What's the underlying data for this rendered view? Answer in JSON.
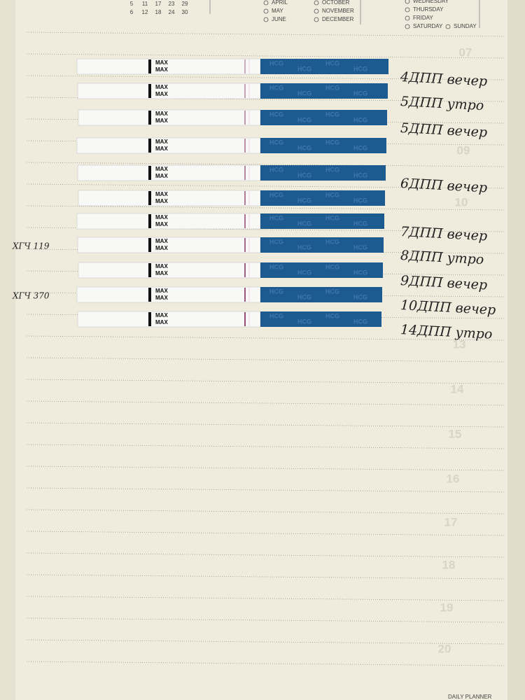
{
  "calendar": {
    "rows": [
      [
        "5",
        "11",
        "17",
        "23",
        "29"
      ],
      [
        "6",
        "12",
        "18",
        "24",
        "30"
      ]
    ],
    "months_left": [
      "APRIL",
      "MAY",
      "JUNE"
    ],
    "months_right": [
      "OCTOBER",
      "NOVEMBER",
      "DECEMBER"
    ],
    "weekdays": [
      "WEDNESDAY",
      "THURSDAY",
      "FRIDAY",
      "SATURDAY",
      "SUNDAY"
    ]
  },
  "hours": [
    "07",
    "09",
    "10",
    "13",
    "14",
    "15",
    "16",
    "17",
    "18",
    "19",
    "20"
  ],
  "strip_marking": "MAX",
  "strip_brand": "HCG",
  "strips": [
    {
      "label": "4ДПП вечер"
    },
    {
      "label": "5ДПП утро"
    },
    {
      "label": "5ДПП вечер"
    },
    {},
    {
      "label": "6ДПП вечер"
    },
    {},
    {
      "label": "7ДПП вечер"
    },
    {
      "label": "8ДПП утро",
      "note": "ХГЧ 119"
    },
    {
      "label": "9ДПП вечер"
    },
    {
      "label": "10ДПП вечер",
      "note": "ХГЧ 370"
    },
    {
      "label": "14ДПП утро"
    }
  ],
  "footer": "DAILY PLANNER"
}
